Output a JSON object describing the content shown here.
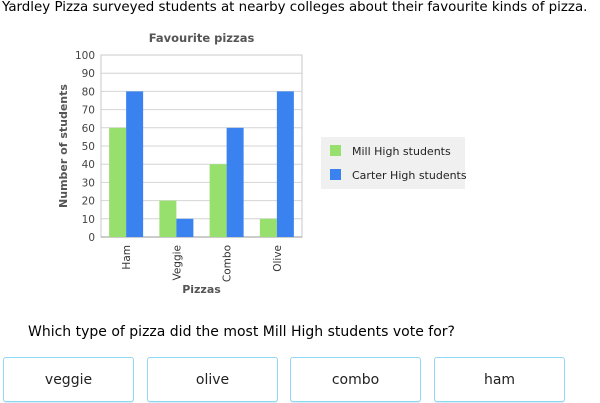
{
  "intro": "Yardley Pizza surveyed students at nearby colleges about their favourite kinds of pizza.",
  "question": "Which type of pizza did the most Mill High students vote for?",
  "answers": [
    "veggie",
    "olive",
    "combo",
    "ham"
  ],
  "chart_data": {
    "type": "bar",
    "title": "Favourite pizzas",
    "xlabel": "Pizzas",
    "ylabel": "Number of students",
    "categories": [
      "Ham",
      "Veggie",
      "Combo",
      "Olive"
    ],
    "series": [
      {
        "name": "Mill High students",
        "values": [
          60,
          20,
          40,
          10
        ],
        "color": "#98e06e"
      },
      {
        "name": "Carter High students",
        "values": [
          80,
          10,
          60,
          80
        ],
        "color": "#3a82f0"
      }
    ],
    "ylim": [
      0,
      100
    ],
    "yticks": [
      0,
      10,
      20,
      30,
      40,
      50,
      60,
      70,
      80,
      90,
      100
    ],
    "grid": true,
    "legend_position": "right"
  }
}
